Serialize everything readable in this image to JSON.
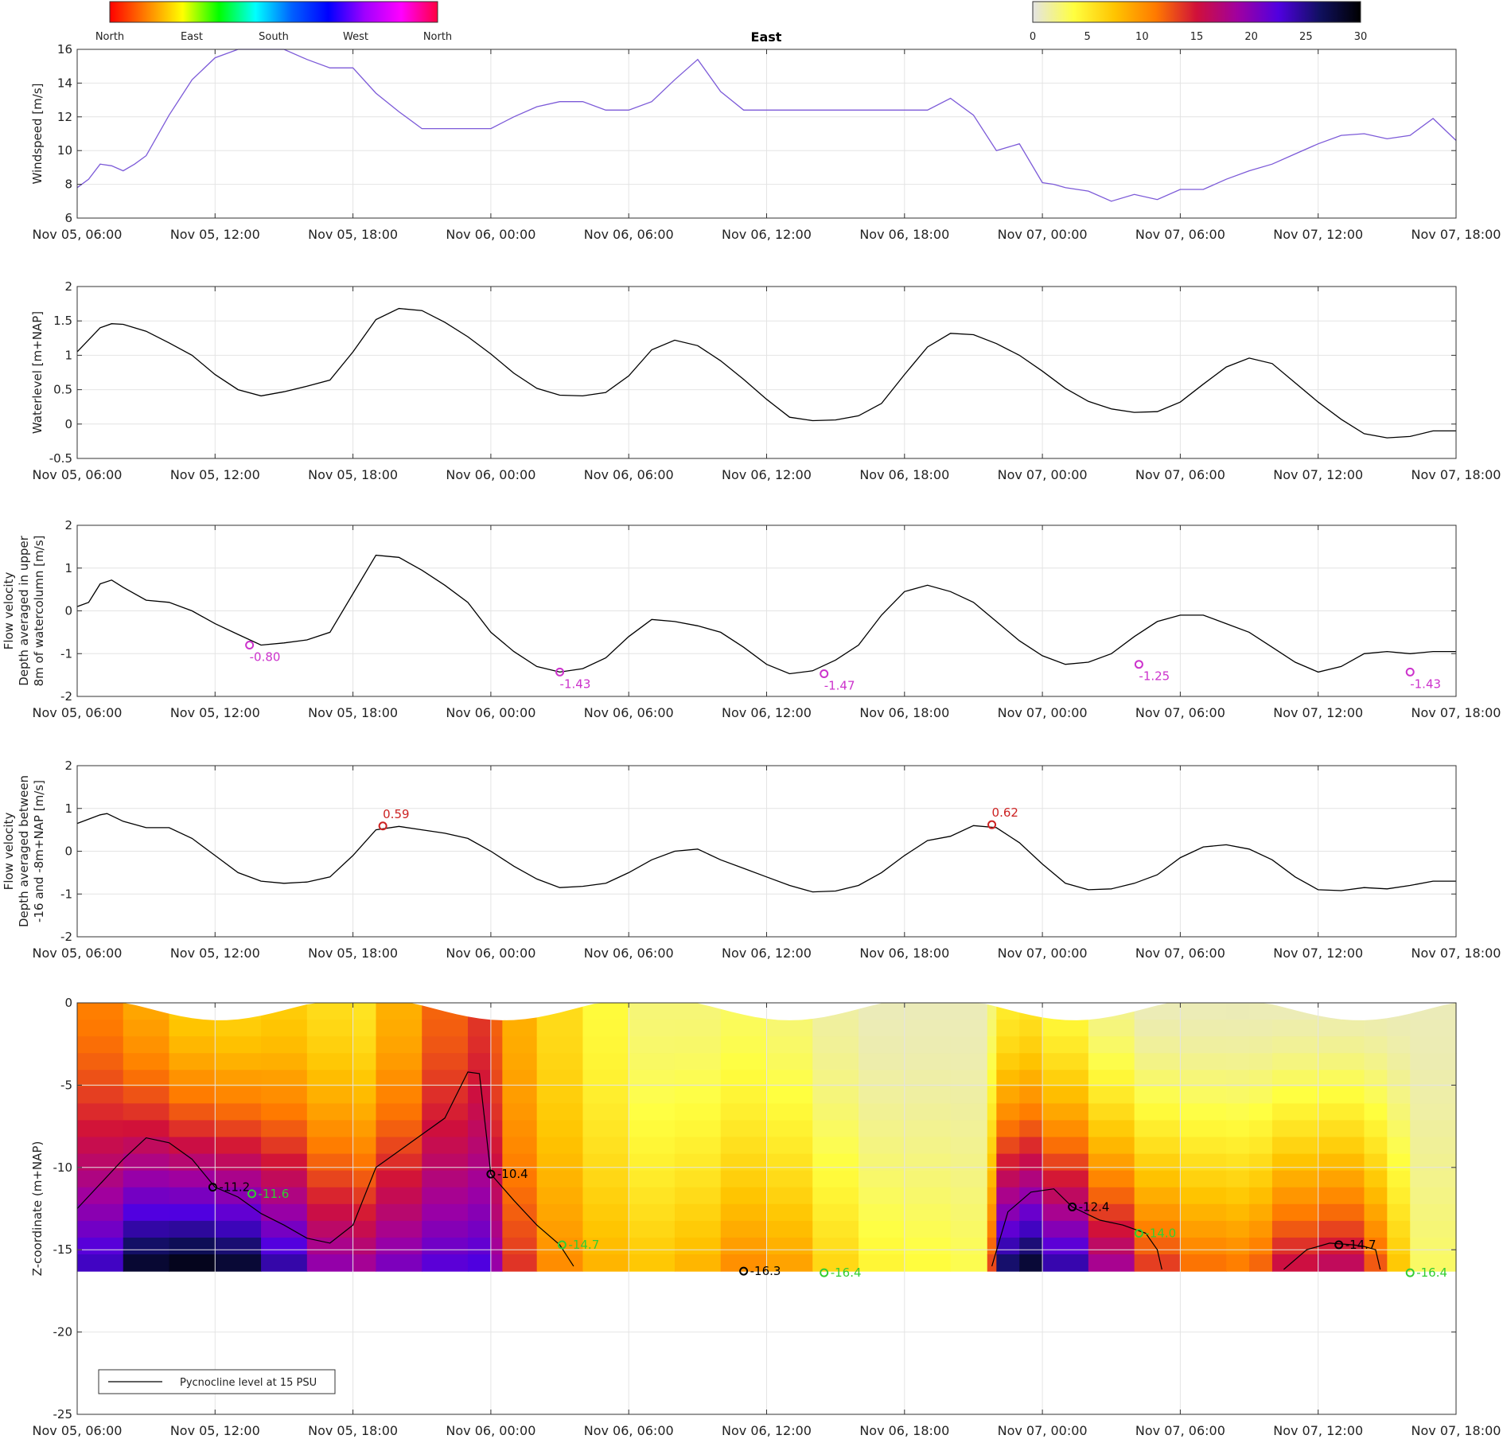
{
  "colorbars": {
    "direction": {
      "labels": [
        "North",
        "East",
        "South",
        "West",
        "North"
      ],
      "stops": [
        "#ff0000",
        "#ff8000",
        "#ffff00",
        "#00ff00",
        "#00ffff",
        "#0060ff",
        "#0000ff",
        "#a000ff",
        "#ff00ff",
        "#ff0040"
      ]
    },
    "direction_title": "East",
    "salinity": {
      "ticks": [
        0,
        5,
        10,
        15,
        20,
        25,
        30
      ],
      "stops": [
        "#e4e4e4",
        "#ffff40",
        "#ffc400",
        "#ff7a00",
        "#d0103a",
        "#a000a0",
        "#5000e0",
        "#101060",
        "#000000"
      ]
    }
  },
  "x_ticks": [
    "Nov 05, 06:00",
    "Nov 05, 12:00",
    "Nov 05, 18:00",
    "Nov 06, 00:00",
    "Nov 06, 06:00",
    "Nov 06, 12:00",
    "Nov 06, 18:00",
    "Nov 07, 00:00",
    "Nov 07, 06:00",
    "Nov 07, 12:00",
    "Nov 07, 18:00"
  ],
  "chart_data": [
    {
      "type": "line",
      "ylabel": "Windspeed [m/s]",
      "ylim": [
        6,
        16
      ],
      "yticks": [
        6,
        8,
        10,
        12,
        14,
        16
      ],
      "x_range_hours": [
        0,
        60
      ],
      "grid": true,
      "line_colored_by": "wind direction",
      "series": [
        {
          "x": [
            0,
            0.5,
            1,
            1.5,
            2,
            2.5,
            3,
            4,
            5,
            6,
            7,
            8,
            9,
            10,
            11,
            12,
            13,
            14,
            15,
            16,
            17,
            18,
            19,
            20,
            21,
            22,
            23,
            24,
            25,
            26,
            27,
            28,
            29,
            30,
            31,
            32,
            33,
            34,
            35,
            36,
            37,
            38,
            39,
            40,
            41,
            42,
            42.5,
            43,
            44,
            45,
            46,
            47,
            48,
            49,
            50,
            51,
            52,
            53,
            54,
            55,
            56,
            57,
            58,
            59,
            60
          ],
          "y": [
            7.8,
            8.3,
            9.2,
            9.1,
            8.8,
            9.2,
            9.7,
            12.1,
            14.2,
            15.5,
            16,
            16,
            16,
            15.4,
            14.9,
            14.9,
            13.4,
            12.3,
            11.3,
            11.3,
            11.3,
            11.3,
            12,
            12.6,
            12.9,
            12.9,
            12.4,
            12.4,
            12.9,
            14.2,
            15.4,
            13.5,
            12.4,
            12.4,
            12.4,
            12.4,
            12.4,
            12.4,
            12.4,
            12.4,
            12.4,
            13.1,
            12.1,
            10,
            10.4,
            8.1,
            8,
            7.8,
            7.6,
            7,
            7.4,
            7.1,
            7.7,
            7.7,
            8.3,
            8.8,
            9.2,
            9.8,
            10.4,
            10.9,
            11.0,
            10.7,
            10.9,
            11.9,
            10.6
          ],
          "color": "#7c5ad8"
        }
      ]
    },
    {
      "type": "line",
      "ylabel": "Waterlevel [m+NAP]",
      "ylim": [
        -0.5,
        2
      ],
      "yticks": [
        -0.5,
        0,
        0.5,
        1,
        1.5,
        2
      ],
      "x_range_hours": [
        0,
        60
      ],
      "grid": true,
      "series": [
        {
          "x": [
            0,
            1,
            1.5,
            2,
            3,
            4,
            5,
            6,
            7,
            8,
            9,
            10,
            11,
            12,
            13,
            14,
            15,
            16,
            17,
            18,
            19,
            20,
            21,
            22,
            23,
            24,
            25,
            26,
            27,
            28,
            29,
            30,
            31,
            32,
            33,
            34,
            35,
            36,
            37,
            38,
            39,
            40,
            41,
            42,
            43,
            44,
            45,
            46,
            47,
            48,
            49,
            50,
            51,
            52,
            53,
            54,
            55,
            56,
            57,
            58,
            59,
            60
          ],
          "y": [
            1.05,
            1.4,
            1.46,
            1.45,
            1.35,
            1.18,
            1.0,
            0.72,
            0.5,
            0.41,
            0.47,
            0.55,
            0.64,
            1.05,
            1.52,
            1.68,
            1.65,
            1.48,
            1.27,
            1.02,
            0.74,
            0.52,
            0.42,
            0.41,
            0.46,
            0.7,
            1.08,
            1.22,
            1.14,
            0.92,
            0.65,
            0.36,
            0.1,
            0.05,
            0.06,
            0.12,
            0.3,
            0.72,
            1.12,
            1.32,
            1.3,
            1.17,
            1.0,
            0.77,
            0.52,
            0.33,
            0.22,
            0.17,
            0.18,
            0.32,
            0.58,
            0.83,
            0.96,
            0.88,
            0.6,
            0.32,
            0.07,
            -0.14,
            -0.2,
            -0.18,
            -0.1,
            -0.1
          ],
          "color": "#000000"
        }
      ]
    },
    {
      "type": "line",
      "ylabel": "Flow velocity",
      "ylabel_lines": [
        "Flow velocity",
        "Depth averaged in upper",
        "8m of watercolumn [m/s]"
      ],
      "ylim": [
        -2,
        2
      ],
      "yticks": [
        -2,
        -1,
        0,
        1,
        2
      ],
      "x_range_hours": [
        0,
        60
      ],
      "grid": true,
      "series": [
        {
          "x": [
            0,
            0.5,
            1,
            1.5,
            2,
            3,
            4,
            5,
            6,
            7,
            8,
            9,
            10,
            11,
            12,
            13,
            14,
            15,
            16,
            17,
            18,
            19,
            20,
            21,
            22,
            23,
            24,
            25,
            26,
            27,
            28,
            29,
            30,
            31,
            32,
            33,
            34,
            35,
            36,
            37,
            38,
            39,
            40,
            41,
            42,
            43,
            44,
            45,
            46,
            47,
            48,
            49,
            50,
            51,
            52,
            53,
            54,
            55,
            56,
            57,
            58,
            59,
            60
          ],
          "y": [
            0.1,
            0.2,
            0.63,
            0.72,
            0.55,
            0.25,
            0.2,
            0.0,
            -0.3,
            -0.55,
            -0.8,
            -0.75,
            -0.68,
            -0.5,
            0.4,
            1.3,
            1.25,
            0.95,
            0.6,
            0.2,
            -0.5,
            -0.95,
            -1.3,
            -1.43,
            -1.35,
            -1.1,
            -0.6,
            -0.2,
            -0.25,
            -0.35,
            -0.5,
            -0.85,
            -1.25,
            -1.47,
            -1.4,
            -1.15,
            -0.8,
            -0.1,
            0.45,
            0.6,
            0.45,
            0.2,
            -0.25,
            -0.7,
            -1.05,
            -1.25,
            -1.2,
            -1.0,
            -0.6,
            -0.25,
            -0.1,
            -0.1,
            -0.3,
            -0.5,
            -0.85,
            -1.2,
            -1.43,
            -1.3,
            -1.0,
            -0.95,
            -1.0,
            -0.95,
            -0.95
          ],
          "color": "#000000"
        }
      ],
      "annotations": [
        {
          "x": 7.5,
          "y": -0.8,
          "label": "-0.80",
          "color": "#cc33cc"
        },
        {
          "x": 21.0,
          "y": -1.43,
          "label": "-1.43",
          "color": "#cc33cc"
        },
        {
          "x": 32.5,
          "y": -1.47,
          "label": "-1.47",
          "color": "#cc33cc"
        },
        {
          "x": 46.2,
          "y": -1.25,
          "label": "-1.25",
          "color": "#cc33cc"
        },
        {
          "x": 58.0,
          "y": -1.43,
          "label": "-1.43",
          "color": "#cc33cc"
        }
      ]
    },
    {
      "type": "line",
      "ylabel": "Flow velocity",
      "ylabel_lines": [
        "Flow velocity",
        "Depth averaged between",
        "-16 and -8m+NAP [m/s]"
      ],
      "ylim": [
        -2,
        2
      ],
      "yticks": [
        -2,
        -1,
        0,
        1,
        2
      ],
      "x_range_hours": [
        0,
        60
      ],
      "grid": true,
      "series": [
        {
          "x": [
            0,
            1,
            1.3,
            2,
            3,
            4,
            5,
            6,
            7,
            8,
            9,
            10,
            11,
            12,
            13,
            14,
            15,
            16,
            17,
            18,
            19,
            20,
            21,
            22,
            23,
            24,
            25,
            26,
            27,
            28,
            29,
            30,
            31,
            32,
            33,
            34,
            35,
            36,
            37,
            38,
            39,
            40,
            41,
            42,
            43,
            44,
            45,
            46,
            47,
            48,
            49,
            50,
            51,
            52,
            53,
            54,
            55,
            56,
            57,
            58,
            59,
            60
          ],
          "y": [
            0.65,
            0.85,
            0.88,
            0.7,
            0.55,
            0.55,
            0.3,
            -0.1,
            -0.5,
            -0.7,
            -0.75,
            -0.72,
            -0.6,
            -0.1,
            0.5,
            0.58,
            0.5,
            0.42,
            0.3,
            0.0,
            -0.35,
            -0.65,
            -0.85,
            -0.82,
            -0.75,
            -0.5,
            -0.2,
            0.0,
            0.05,
            -0.2,
            -0.4,
            -0.6,
            -0.8,
            -0.95,
            -0.93,
            -0.8,
            -0.5,
            -0.1,
            0.25,
            0.35,
            0.6,
            0.55,
            0.2,
            -0.3,
            -0.75,
            -0.9,
            -0.88,
            -0.75,
            -0.55,
            -0.15,
            0.1,
            0.15,
            0.05,
            -0.2,
            -0.6,
            -0.9,
            -0.92,
            -0.85,
            -0.88,
            -0.8,
            -0.7,
            -0.7
          ],
          "color": "#000000"
        }
      ],
      "annotations": [
        {
          "x": 13.3,
          "y": 0.59,
          "label": "0.59",
          "color": "#cc2222"
        },
        {
          "x": 39.8,
          "y": 0.62,
          "label": "0.62",
          "color": "#cc2222"
        }
      ]
    },
    {
      "type": "heatmap",
      "ylabel": "Z-coordinate (m+NAP)",
      "ylim": [
        -25,
        0
      ],
      "yticks": [
        -25,
        -20,
        -15,
        -10,
        -5,
        0
      ],
      "x_range_hours": [
        0,
        60
      ],
      "grid": true,
      "legend": {
        "label": "Pycnocline level at 15 PSU",
        "placement": "bottom-left"
      },
      "pycnocline": {
        "x": [
          0,
          1,
          2,
          3,
          4,
          5,
          6,
          7,
          8,
          9,
          10,
          11,
          12,
          13,
          14,
          15,
          16,
          17,
          17.5,
          18,
          19,
          20,
          21,
          21.6
        ],
        "y": [
          -12.5,
          -11,
          -9.5,
          -8.2,
          -8.5,
          -9.5,
          -11.2,
          -11.8,
          -12.8,
          -13.5,
          -14.3,
          -14.6,
          -13.5,
          -10,
          -9,
          -8,
          -7,
          -4.2,
          -4.3,
          -10.4,
          -12.0,
          -13.5,
          -14.7,
          -16.0
        ]
      },
      "pycnocline_2": {
        "x": [
          39.8,
          40.5,
          41.5,
          42.5,
          43.3,
          44.5,
          45.5,
          46.5,
          47.0,
          47.2
        ],
        "y": [
          -16.0,
          -12.7,
          -11.5,
          -11.3,
          -12.4,
          -13.2,
          -13.5,
          -14.0,
          -15.0,
          -16.2
        ]
      },
      "pycnocline_3": {
        "x": [
          52.5,
          53.5,
          54.5,
          55.5,
          56.0,
          56.5,
          56.7
        ],
        "y": [
          -16.2,
          -15.0,
          -14.6,
          -14.7,
          -14.8,
          -15.0,
          -16.2
        ]
      },
      "annotations": [
        {
          "x": 5.9,
          "y": -11.2,
          "label": "-11.2",
          "color": "#000000"
        },
        {
          "x": 7.6,
          "y": -11.6,
          "label": "-11.6",
          "color": "#33cc33"
        },
        {
          "x": 18.0,
          "y": -10.4,
          "label": "-10.4",
          "color": "#000000"
        },
        {
          "x": 21.1,
          "y": -14.7,
          "label": "-14.7",
          "color": "#33cc33"
        },
        {
          "x": 29.0,
          "y": -16.3,
          "label": "-16.3",
          "color": "#000000"
        },
        {
          "x": 32.5,
          "y": -16.4,
          "label": "-16.4",
          "color": "#33cc33"
        },
        {
          "x": 43.3,
          "y": -12.4,
          "label": "-12.4",
          "color": "#000000"
        },
        {
          "x": 46.2,
          "y": -14.0,
          "label": "-14.0",
          "color": "#33cc33"
        },
        {
          "x": 54.9,
          "y": -14.7,
          "label": "-14.7",
          "color": "#000000"
        },
        {
          "x": 58.0,
          "y": -16.4,
          "label": "-16.4",
          "color": "#33cc33"
        }
      ],
      "salinity_columns": {
        "x": [
          0,
          2,
          4,
          6,
          8,
          10,
          12,
          13,
          15,
          17,
          18,
          18.5,
          20,
          22,
          24,
          26,
          28,
          30,
          32,
          34,
          36,
          38,
          39.6,
          40,
          41,
          42,
          44,
          46,
          48,
          50,
          51,
          52,
          54,
          56,
          57,
          58,
          60
        ],
        "surface": [
          12,
          10,
          8,
          6,
          7,
          7,
          5,
          6,
          11,
          13,
          14,
          10,
          7,
          5,
          3,
          2,
          3,
          3,
          2,
          1,
          1,
          1,
          1,
          4,
          6,
          5,
          3,
          1,
          1,
          1,
          1,
          1,
          1,
          1,
          1,
          1,
          1
        ],
        "bottom": [
          20,
          28,
          30,
          30,
          28,
          22,
          18,
          20,
          22,
          23,
          23,
          16,
          12,
          9,
          8,
          7,
          10,
          11,
          8,
          5,
          4,
          4,
          3,
          24,
          30,
          28,
          22,
          16,
          12,
          12,
          11,
          14,
          18,
          16,
          10,
          5,
          1
        ]
      }
    }
  ]
}
